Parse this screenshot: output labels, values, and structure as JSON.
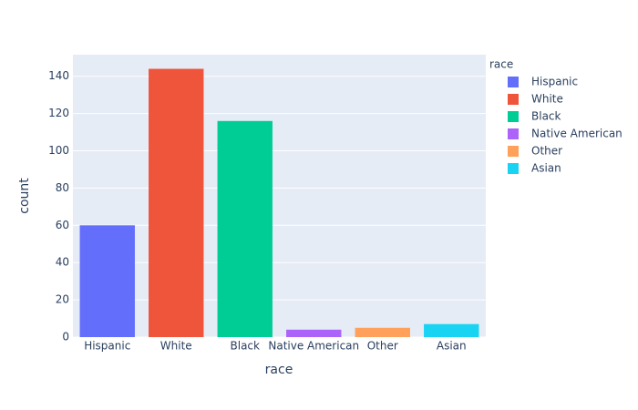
{
  "chart_data": {
    "type": "bar",
    "categories": [
      "Hispanic",
      "White",
      "Black",
      "Native American",
      "Other",
      "Asian"
    ],
    "series": [
      {
        "name": "Hispanic",
        "color": "#636efa",
        "values": [
          60,
          null,
          null,
          null,
          null,
          null
        ]
      },
      {
        "name": "White",
        "color": "#ef553b",
        "values": [
          null,
          144,
          null,
          null,
          null,
          null
        ]
      },
      {
        "name": "Black",
        "color": "#00cc96",
        "values": [
          null,
          null,
          116,
          null,
          null,
          null
        ]
      },
      {
        "name": "Native American",
        "color": "#ab63fa",
        "values": [
          null,
          null,
          null,
          4,
          null,
          null
        ]
      },
      {
        "name": "Other",
        "color": "#ffa15a",
        "values": [
          null,
          null,
          null,
          null,
          5,
          null
        ]
      },
      {
        "name": "Asian",
        "color": "#19d3f3",
        "values": [
          null,
          null,
          null,
          null,
          null,
          7
        ]
      }
    ],
    "x_label": "race",
    "y_label": "count",
    "legend_title": "race",
    "ylim": [
      0,
      151.6
    ],
    "yticks": [
      0,
      20,
      40,
      60,
      80,
      100,
      120,
      140
    ],
    "grid": true,
    "legend": "right"
  }
}
